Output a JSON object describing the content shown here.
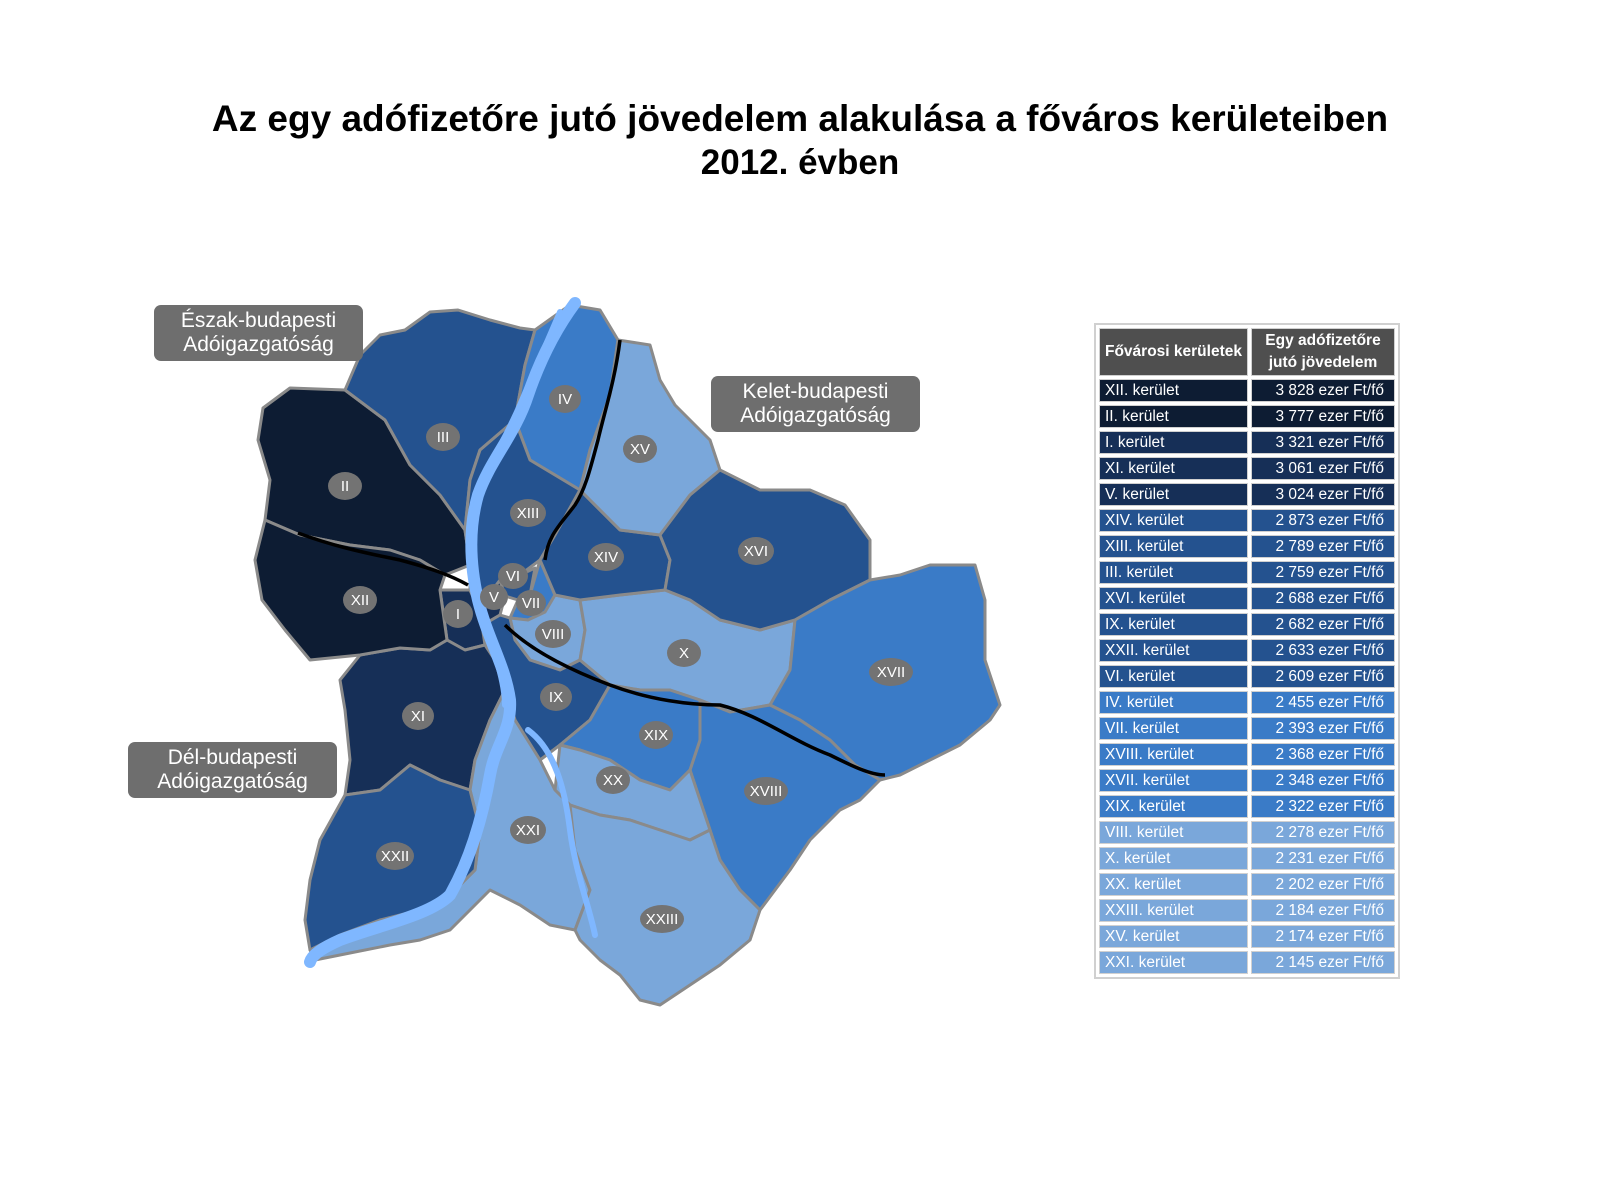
{
  "title": "Az egy adófizetőre jutó jövedelem alakulása a főváros kerületeiben",
  "subtitle": "2012. évben",
  "callouts": {
    "north": [
      "Észak-budapesti",
      "Adóigazgatóság"
    ],
    "east": [
      "Kelet-budapesti",
      "Adóigazgatóság"
    ],
    "south": [
      "Dél-budapesti",
      "Adóigazgatóság"
    ]
  },
  "colors": {
    "dark_navy": "#0d1c33",
    "navy": "#162f57",
    "medium_dark_blue": "#24528f",
    "medium_blue": "#3a7bc7",
    "light_blue": "#7aa7da",
    "river": "#7fb7ff",
    "label_bubble": "#737373",
    "header": "#4f4f4f"
  },
  "districts": [
    {
      "label": "I",
      "color": "navy"
    },
    {
      "label": "II",
      "color": "dark_navy"
    },
    {
      "label": "III",
      "color": "medium_dark_blue"
    },
    {
      "label": "IV",
      "color": "medium_blue"
    },
    {
      "label": "V",
      "color": "navy"
    },
    {
      "label": "VI",
      "color": "medium_dark_blue"
    },
    {
      "label": "VII",
      "color": "medium_blue"
    },
    {
      "label": "VIII",
      "color": "light_blue"
    },
    {
      "label": "IX",
      "color": "medium_dark_blue"
    },
    {
      "label": "X",
      "color": "light_blue"
    },
    {
      "label": "XI",
      "color": "navy"
    },
    {
      "label": "XII",
      "color": "dark_navy"
    },
    {
      "label": "XIII",
      "color": "medium_dark_blue"
    },
    {
      "label": "XIV",
      "color": "medium_dark_blue"
    },
    {
      "label": "XV",
      "color": "light_blue"
    },
    {
      "label": "XVI",
      "color": "medium_dark_blue"
    },
    {
      "label": "XVII",
      "color": "medium_blue"
    },
    {
      "label": "XVIII",
      "color": "medium_blue"
    },
    {
      "label": "XIX",
      "color": "medium_blue"
    },
    {
      "label": "XX",
      "color": "light_blue"
    },
    {
      "label": "XXI",
      "color": "light_blue"
    },
    {
      "label": "XXII",
      "color": "medium_dark_blue"
    },
    {
      "label": "XXIII",
      "color": "light_blue"
    }
  ],
  "table": {
    "headers": [
      "Fővárosi kerületek",
      "Egy adófizetőre jutó jövedelem"
    ],
    "rows": [
      {
        "district": "XII. kerület",
        "value": "3 828 ezer Ft/fő",
        "color": "#0d1c33"
      },
      {
        "district": "II. kerület",
        "value": "3 777 ezer Ft/fő",
        "color": "#0d1c33"
      },
      {
        "district": "I. kerület",
        "value": "3 321 ezer Ft/fő",
        "color": "#162f57"
      },
      {
        "district": "XI. kerület",
        "value": "3 061 ezer Ft/fő",
        "color": "#162f57"
      },
      {
        "district": "V. kerület",
        "value": "3 024 ezer Ft/fő",
        "color": "#162f57"
      },
      {
        "district": "XIV. kerület",
        "value": "2 873 ezer Ft/fő",
        "color": "#24528f"
      },
      {
        "district": "XIII. kerület",
        "value": "2 789 ezer Ft/fő",
        "color": "#24528f"
      },
      {
        "district": "III. kerület",
        "value": "2 759 ezer Ft/fő",
        "color": "#24528f"
      },
      {
        "district": "XVI. kerület",
        "value": "2 688 ezer Ft/fő",
        "color": "#24528f"
      },
      {
        "district": "IX. kerület",
        "value": "2 682 ezer Ft/fő",
        "color": "#24528f"
      },
      {
        "district": "XXII. kerület",
        "value": "2 633 ezer Ft/fő",
        "color": "#24528f"
      },
      {
        "district": "VI. kerület",
        "value": "2 609 ezer Ft/fő",
        "color": "#24528f"
      },
      {
        "district": "IV. kerület",
        "value": "2 455 ezer Ft/fő",
        "color": "#3a7bc7"
      },
      {
        "district": "VII. kerület",
        "value": "2 393 ezer Ft/fő",
        "color": "#3a7bc7"
      },
      {
        "district": "XVIII. kerület",
        "value": "2 368 ezer Ft/fő",
        "color": "#3a7bc7"
      },
      {
        "district": "XVII. kerület",
        "value": "2 348 ezer Ft/fő",
        "color": "#3a7bc7"
      },
      {
        "district": "XIX. kerület",
        "value": "2 322 ezer Ft/fő",
        "color": "#3a7bc7"
      },
      {
        "district": "VIII. kerület",
        "value": "2 278 ezer Ft/fő",
        "color": "#7aa7da"
      },
      {
        "district": "X. kerület",
        "value": "2 231 ezer Ft/fő",
        "color": "#7aa7da"
      },
      {
        "district": "XX. kerület",
        "value": "2 202 ezer Ft/fő",
        "color": "#7aa7da"
      },
      {
        "district": "XXIII. kerület",
        "value": "2 184 ezer Ft/fő",
        "color": "#7aa7da"
      },
      {
        "district": "XV. kerület",
        "value": "2 174 ezer Ft/fő",
        "color": "#7aa7da"
      },
      {
        "district": "XXI. kerület",
        "value": "2 145 ezer Ft/fő",
        "color": "#7aa7da"
      }
    ]
  }
}
